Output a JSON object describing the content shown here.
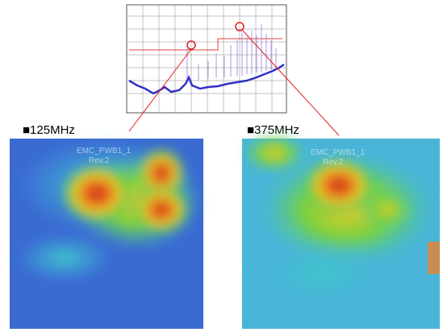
{
  "labels": {
    "left": "■125MHz",
    "right": "■375MHz"
  },
  "boards": [
    {
      "name": "EMC_PWB1_1",
      "rev": "Rev.2"
    },
    {
      "name": "EMC_PWB1_1",
      "rev": "Rev.2"
    }
  ]
}
